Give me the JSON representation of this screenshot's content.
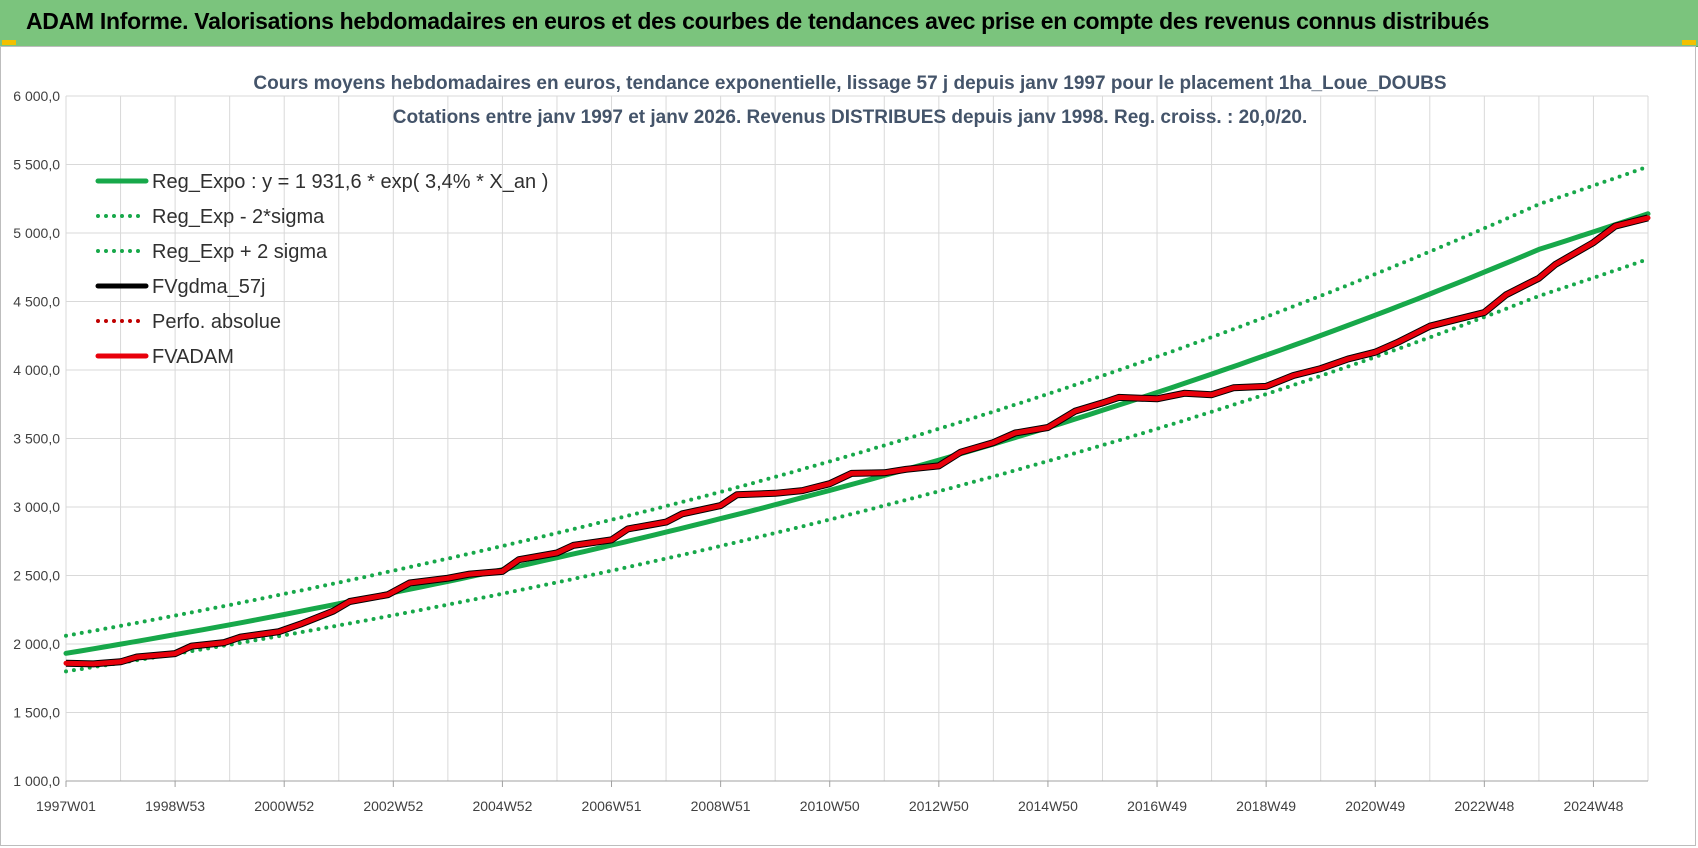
{
  "header": {
    "title": "ADAM Informe. Valorisations hebdomadaires en euros et des courbes de tendances avec prise en compte des revenus connus distribués"
  },
  "colors": {
    "banner": "#7bc47d",
    "reg_expo": "#17a84a",
    "fvadam": "#e8000b",
    "fvgdma": "#000000",
    "perfo": "#c00000",
    "grid": "#d9d9d9"
  },
  "chart_data": {
    "type": "line",
    "title": "Cours moyens hebdomadaires en euros, tendance exponentielle, lissage 57 j depuis janv 1997 pour le placement 1ha_Loue_DOUBS",
    "subtitle": "Cotations entre janv 1997 et janv 2026. Revenus DISTRIBUES depuis janv 1998. Reg. croiss. : 20,0/20.",
    "xlabel": "",
    "ylabel": "",
    "x_ticks": [
      "1997W01",
      "1998W53",
      "2000W52",
      "2002W52",
      "2004W52",
      "2006W51",
      "2008W51",
      "2010W50",
      "2012W50",
      "2014W50",
      "2016W49",
      "2018W49",
      "2020W49",
      "2022W48",
      "2024W48"
    ],
    "x_range": [
      1997.0,
      2026.0
    ],
    "y_ticks": [
      "1 000,0",
      "1 500,0",
      "2 000,0",
      "2 500,0",
      "3 000,0",
      "3 500,0",
      "4 000,0",
      "4 500,0",
      "5 000,0",
      "5 500,0",
      "6 000,0"
    ],
    "ylim": [
      1000,
      6000
    ],
    "grid": true,
    "legend_position": "top-left",
    "legend": [
      {
        "label": "Reg_Expo : y = 1 931,6 * exp( 3,4% *  X_an )",
        "style": "solid",
        "color": "#17a84a"
      },
      {
        "label": "Reg_Exp - 2*sigma",
        "style": "dotted",
        "color": "#17a84a"
      },
      {
        "label": "Reg_Exp + 2 sigma",
        "style": "dotted",
        "color": "#17a84a"
      },
      {
        "label": "FVgdma_57j",
        "style": "solid",
        "color": "#000000"
      },
      {
        "label": "Perfo. absolue",
        "style": "dotted",
        "color": "#c00000"
      },
      {
        "label": "FVADAM",
        "style": "solid",
        "color": "#e8000b"
      }
    ],
    "series": [
      {
        "name": "Reg_Expo : y = 1 931,6 * exp( 3,4% *  X_an )",
        "model": "exponential",
        "a": 1931.6,
        "rate": 0.034,
        "x": [
          1997,
          2000,
          2003,
          2006,
          2009,
          2012,
          2015,
          2018,
          2021,
          2024,
          2026
        ],
        "values": [
          1932,
          2140,
          2375,
          2630,
          2915,
          3230,
          3580,
          3970,
          4400,
          4880,
          5140
        ]
      },
      {
        "name": "Reg_Exp - 2*sigma",
        "x": [
          1997,
          2000,
          2003,
          2006,
          2009,
          2012,
          2015,
          2018,
          2021,
          2024,
          2026
        ],
        "values": [
          1800,
          1995,
          2210,
          2450,
          2715,
          3010,
          3335,
          3695,
          4095,
          4540,
          4810
        ]
      },
      {
        "name": "Reg_Exp + 2 sigma",
        "x": [
          1997,
          2000,
          2003,
          2006,
          2009,
          2012,
          2015,
          2018,
          2021,
          2024,
          2026
        ],
        "values": [
          2060,
          2285,
          2535,
          2810,
          3110,
          3450,
          3825,
          4240,
          4700,
          5210,
          5485
        ]
      },
      {
        "name": "FVADAM",
        "x": [
          1997.0,
          1997.5,
          1998.0,
          1998.3,
          1999.0,
          1999.3,
          1999.9,
          2000.2,
          2000.9,
          2001.3,
          2001.9,
          2002.2,
          2002.9,
          2003.3,
          2004.0,
          2004.4,
          2005.0,
          2005.3,
          2006.0,
          2006.3,
          2007.0,
          2007.3,
          2008.0,
          2008.3,
          2009.0,
          2009.3,
          2010.0,
          2010.5,
          2011.0,
          2011.4,
          2012.0,
          2012.4,
          2013.0,
          2013.4,
          2014.0,
          2014.4,
          2015.0,
          2015.5,
          2016.0,
          2016.3,
          2017.0,
          2017.5,
          2018.0,
          2018.4,
          2019.0,
          2019.5,
          2020.0,
          2020.5,
          2021.0,
          2021.4,
          2022.0,
          2022.4,
          2023.0,
          2023.4,
          2024.0,
          2024.3,
          2025.0,
          2025.4,
          2026.0
        ],
        "values": [
          1860,
          1855,
          1870,
          1905,
          1930,
          1985,
          2010,
          2050,
          2090,
          2145,
          2240,
          2310,
          2360,
          2445,
          2480,
          2510,
          2530,
          2615,
          2665,
          2720,
          2760,
          2840,
          2890,
          2950,
          3010,
          3090,
          3100,
          3120,
          3170,
          3245,
          3250,
          3275,
          3300,
          3400,
          3470,
          3540,
          3580,
          3700,
          3760,
          3800,
          3790,
          3830,
          3820,
          3870,
          3880,
          3960,
          4010,
          4080,
          4130,
          4200,
          4320,
          4360,
          4420,
          4550,
          4670,
          4770,
          4930,
          5050,
          5110
        ]
      }
    ]
  }
}
